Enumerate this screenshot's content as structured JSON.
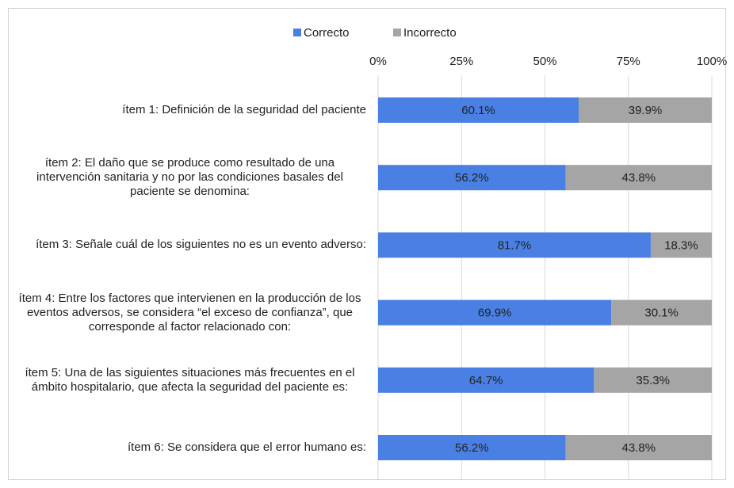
{
  "chart_data": {
    "type": "stacked_bar_horizontal",
    "categories": [
      "ítem 1: Definición de la seguridad del paciente",
      "ítem 2: El daño que se produce como resultado de una intervención sanitaria y no por las condiciones basales del paciente se denomina:",
      "ítem 3: Señale cuál de los siguientes no es un evento adverso:",
      "ítem 4: Entre los factores que intervienen en la producción de los eventos adversos, se considera “el exceso de confianza”, que corresponde al factor relacionado con:",
      "ítem 5: Una de las siguientes situaciones más frecuentes en el ámbito hospitalario, que afecta la seguridad del paciente es:",
      "ítem 6: Se considera que el error humano es:"
    ],
    "series": [
      {
        "name": "Correcto",
        "color": "#4a80e4",
        "values": [
          60.1,
          56.2,
          81.7,
          69.9,
          64.7,
          56.2
        ],
        "value_labels": [
          "60.1%",
          "56.2%",
          "81.7%",
          "69.9%",
          "64.7%",
          "56.2%"
        ]
      },
      {
        "name": "Incorrecto",
        "color": "#a5a5a5",
        "values": [
          39.9,
          43.8,
          18.3,
          30.1,
          35.3,
          43.8
        ],
        "value_labels": [
          "39.9%",
          "43.8%",
          "18.3%",
          "30.1%",
          "35.3%",
          "43.8%"
        ]
      }
    ],
    "xlim": [
      0,
      100
    ],
    "xticks": [
      {
        "value": 0,
        "label": "0%"
      },
      {
        "value": 25,
        "label": "25%"
      },
      {
        "value": 50,
        "label": "50%"
      },
      {
        "value": 75,
        "label": "75%"
      },
      {
        "value": 100,
        "label": "100%"
      }
    ],
    "grid": true,
    "legend": "top"
  }
}
